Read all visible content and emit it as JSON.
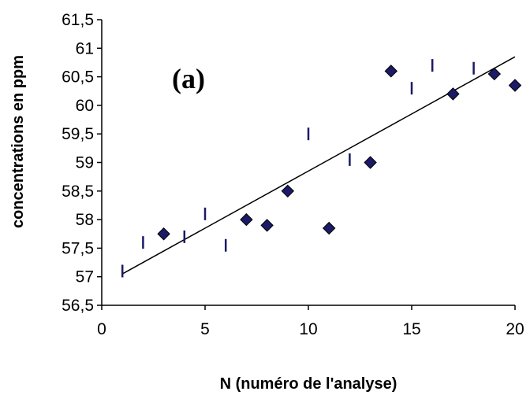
{
  "chart_data": {
    "type": "scatter",
    "panel_label": "(a)",
    "xlabel": "N (numéro de l'analyse)",
    "ylabel": "concentrations en ppm",
    "xlim": [
      0,
      20
    ],
    "ylim": [
      56.5,
      61.5
    ],
    "x_ticks": [
      "0",
      "5",
      "10",
      "15",
      "20"
    ],
    "y_ticks": [
      "56,5",
      "57",
      "57,5",
      "58",
      "58,5",
      "59",
      "59,5",
      "60",
      "60,5",
      "61",
      "61,5"
    ],
    "series": [
      {
        "marker": "diamond",
        "color": "#1a1a66",
        "points": [
          {
            "x": 3,
            "y": 57.75
          },
          {
            "x": 7,
            "y": 58.0
          },
          {
            "x": 8,
            "y": 57.9
          },
          {
            "x": 9,
            "y": 58.5
          },
          {
            "x": 11,
            "y": 57.85
          },
          {
            "x": 13,
            "y": 59.0
          },
          {
            "x": 14,
            "y": 60.6
          },
          {
            "x": 17,
            "y": 60.2
          },
          {
            "x": 19,
            "y": 60.55
          },
          {
            "x": 20,
            "y": 60.35
          }
        ]
      },
      {
        "marker": "vertical-dash",
        "color": "#1a1a66",
        "points": [
          {
            "x": 1,
            "y": 57.1
          },
          {
            "x": 2,
            "y": 57.6
          },
          {
            "x": 4,
            "y": 57.7
          },
          {
            "x": 5,
            "y": 58.1
          },
          {
            "x": 6,
            "y": 57.55
          },
          {
            "x": 10,
            "y": 59.5
          },
          {
            "x": 12,
            "y": 59.05
          },
          {
            "x": 15,
            "y": 60.3
          },
          {
            "x": 16,
            "y": 60.7
          },
          {
            "x": 18,
            "y": 60.65
          }
        ]
      }
    ],
    "trendline": {
      "x": [
        1,
        20
      ],
      "y": [
        57.05,
        60.85
      ]
    },
    "grid": false,
    "legend": "none"
  }
}
